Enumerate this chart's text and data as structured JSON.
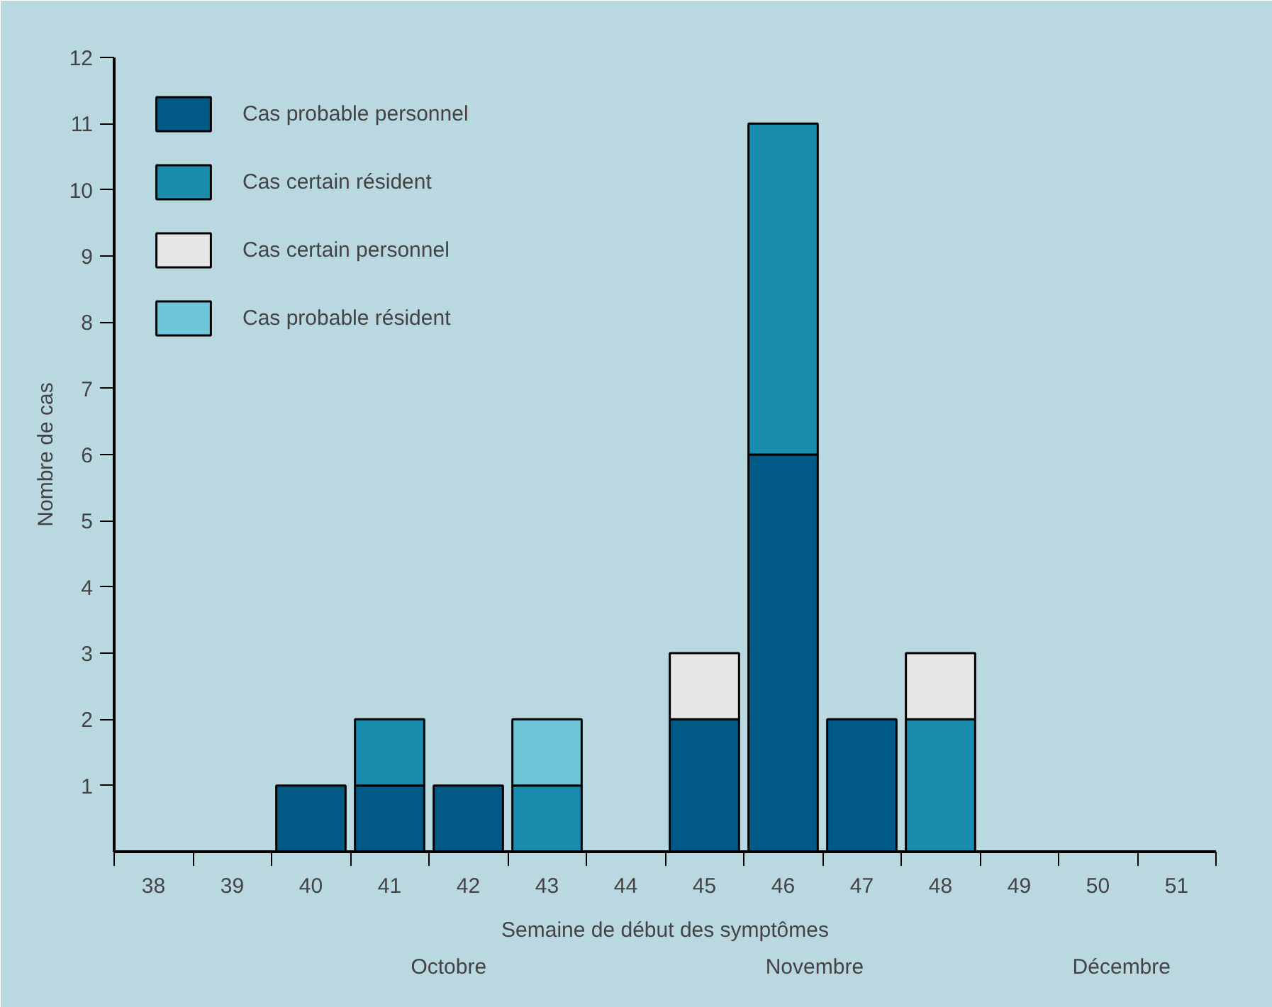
{
  "chart_data": {
    "type": "bar",
    "stacked": true,
    "categories": [
      "38",
      "39",
      "40",
      "41",
      "42",
      "43",
      "44",
      "45",
      "46",
      "47",
      "48",
      "49",
      "50",
      "51"
    ],
    "series": [
      {
        "name": "Cas probable personnel",
        "color": "#005a85",
        "values": [
          0,
          0,
          1,
          1,
          1,
          0,
          0,
          2,
          6,
          2,
          0,
          0,
          0,
          0
        ]
      },
      {
        "name": "Cas certain résident",
        "color": "#1a8cae",
        "values": [
          0,
          0,
          0,
          1,
          0,
          1,
          0,
          0,
          5,
          0,
          2,
          0,
          0,
          0
        ]
      },
      {
        "name": "Cas certain personnel",
        "color": "#e6e6e6",
        "values": [
          0,
          0,
          0,
          0,
          0,
          0,
          0,
          1,
          0,
          0,
          1,
          0,
          0,
          0
        ]
      },
      {
        "name": "Cas probable résident",
        "color": "#6ec6d8",
        "values": [
          0,
          0,
          0,
          0,
          0,
          1,
          0,
          0,
          0,
          0,
          0,
          0,
          0,
          0
        ]
      }
    ],
    "ylim": [
      0,
      12
    ],
    "yticks": [
      1,
      2,
      3,
      4,
      5,
      6,
      7,
      8,
      9,
      10,
      11,
      12
    ],
    "xlabel": "Semaine de début des symptômes",
    "ylabel": "Nombre de cas",
    "annotations": [
      "Octobre",
      "Novembre",
      "Décembre"
    ],
    "legend": "top left",
    "grid": false
  }
}
